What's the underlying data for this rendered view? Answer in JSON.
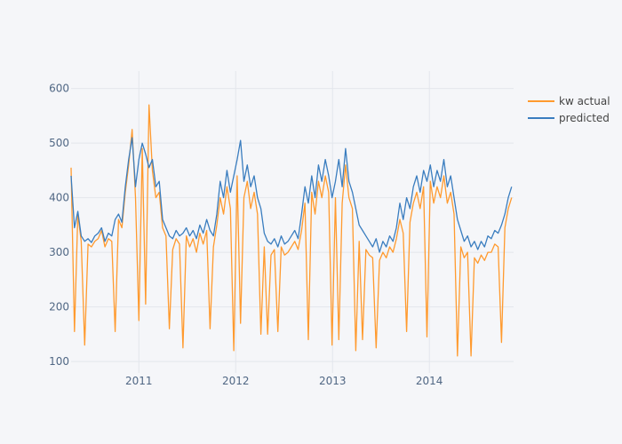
{
  "chart_data": {
    "type": "line",
    "title": "",
    "xlabel": "",
    "ylabel": "",
    "xlim": [
      2010.3,
      2014.87
    ],
    "ylim": [
      79,
      632
    ],
    "x_ticks": [
      {
        "value": 2011,
        "label": "2011"
      },
      {
        "value": 2012,
        "label": "2012"
      },
      {
        "value": 2013,
        "label": "2013"
      },
      {
        "value": 2014,
        "label": "2014"
      }
    ],
    "y_ticks": [
      {
        "value": 100,
        "label": "100"
      },
      {
        "value": 200,
        "label": "200"
      },
      {
        "value": 300,
        "label": "300"
      },
      {
        "value": 400,
        "label": "400"
      },
      {
        "value": 500,
        "label": "500"
      },
      {
        "value": 600,
        "label": "600"
      }
    ],
    "grid": true,
    "legend_position": "top-right",
    "x_start": 2010.3,
    "x_step": 0.035,
    "series": [
      {
        "name": "kw actual",
        "color": "#ff9a2e",
        "values": [
          455,
          155,
          370,
          320,
          130,
          315,
          310,
          320,
          325,
          340,
          310,
          325,
          320,
          155,
          360,
          345,
          410,
          460,
          525,
          400,
          175,
          490,
          205,
          570,
          450,
          400,
          410,
          345,
          330,
          160,
          305,
          325,
          315,
          125,
          330,
          310,
          325,
          300,
          335,
          315,
          340,
          160,
          310,
          350,
          400,
          370,
          420,
          380,
          120,
          440,
          170,
          400,
          430,
          380,
          410,
          370,
          150,
          310,
          150,
          295,
          305,
          155,
          310,
          295,
          300,
          310,
          320,
          305,
          340,
          390,
          140,
          410,
          370,
          430,
          400,
          440,
          410,
          130,
          400,
          140,
          390,
          460,
          400,
          380,
          120,
          320,
          140,
          305,
          295,
          290,
          125,
          285,
          300,
          290,
          310,
          300,
          325,
          360,
          335,
          155,
          355,
          390,
          410,
          380,
          420,
          145,
          430,
          390,
          420,
          400,
          440,
          390,
          410,
          370,
          110,
          310,
          290,
          300,
          110,
          290,
          280,
          295,
          285,
          300,
          300,
          315,
          310,
          135,
          345,
          380,
          400
        ]
      },
      {
        "name": "predicted",
        "color": "#3a7dbf",
        "values": [
          440,
          345,
          375,
          330,
          320,
          325,
          318,
          330,
          335,
          345,
          320,
          335,
          330,
          360,
          370,
          355,
          420,
          470,
          510,
          420,
          470,
          500,
          480,
          455,
          470,
          420,
          430,
          360,
          345,
          330,
          325,
          340,
          330,
          335,
          345,
          330,
          340,
          325,
          350,
          335,
          360,
          340,
          330,
          370,
          430,
          400,
          450,
          410,
          440,
          470,
          505,
          430,
          460,
          420,
          440,
          400,
          380,
          335,
          320,
          315,
          325,
          310,
          330,
          315,
          320,
          330,
          340,
          325,
          370,
          420,
          390,
          440,
          400,
          460,
          430,
          470,
          440,
          400,
          430,
          470,
          420,
          490,
          430,
          410,
          380,
          350,
          340,
          330,
          320,
          310,
          325,
          300,
          320,
          310,
          330,
          320,
          345,
          390,
          360,
          400,
          380,
          420,
          440,
          410,
          450,
          430,
          460,
          420,
          450,
          430,
          470,
          420,
          440,
          400,
          360,
          340,
          320,
          330,
          310,
          320,
          305,
          320,
          310,
          330,
          325,
          340,
          335,
          350,
          370,
          400,
          420
        ]
      }
    ]
  }
}
